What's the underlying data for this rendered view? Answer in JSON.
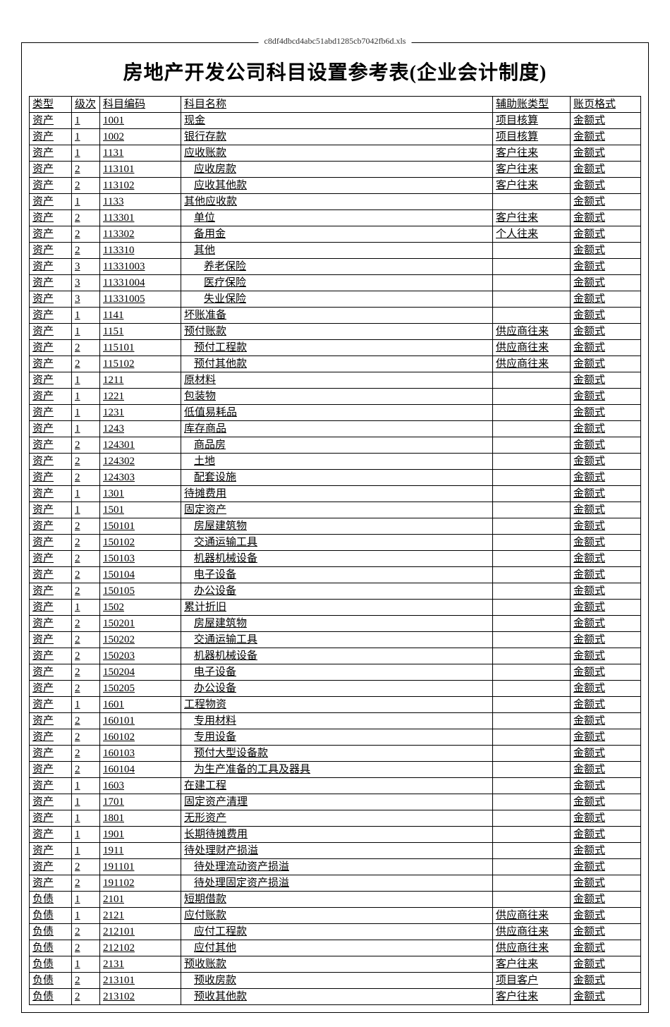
{
  "hidden_header": "c8df4dbcd4abc51abd1285cb7042fb6d.xls",
  "title": "房地产开发公司科目设置参考表(企业会计制度)",
  "columns": [
    "类型",
    "级次",
    "科目编码",
    "科目名称",
    "辅助账类型",
    "账页格式"
  ],
  "rows": [
    {
      "type": "资产",
      "level": "1",
      "code": "1001",
      "name": "现金",
      "aux": "项目核算",
      "page": "金额式"
    },
    {
      "type": "资产",
      "level": "1",
      "code": "1002",
      "name": "银行存款",
      "aux": "项目核算",
      "page": "金额式"
    },
    {
      "type": "资产",
      "level": "1",
      "code": "1131",
      "name": "应收账款",
      "aux": "客户往来",
      "page": "金额式"
    },
    {
      "type": "资产",
      "level": "2",
      "code": "113101",
      "name": "应收房款",
      "aux": "客户往来",
      "page": "金额式"
    },
    {
      "type": "资产",
      "level": "2",
      "code": "113102",
      "name": "应收其他款",
      "aux": "客户往来",
      "page": "金额式"
    },
    {
      "type": "资产",
      "level": "1",
      "code": "1133",
      "name": "其他应收款",
      "aux": "",
      "page": "金额式"
    },
    {
      "type": "资产",
      "level": "2",
      "code": "113301",
      "name": "单位",
      "aux": "客户往来",
      "page": "金额式"
    },
    {
      "type": "资产",
      "level": "2",
      "code": "113302",
      "name": "备用金",
      "aux": "个人往来",
      "page": "金额式"
    },
    {
      "type": "资产",
      "level": "2",
      "code": "113310",
      "name": "其他",
      "aux": "",
      "page": "金额式"
    },
    {
      "type": "资产",
      "level": "3",
      "code": "11331003",
      "name": "养老保险",
      "aux": "",
      "page": "金额式"
    },
    {
      "type": "资产",
      "level": "3",
      "code": "11331004",
      "name": "医疗保险",
      "aux": "",
      "page": "金额式"
    },
    {
      "type": "资产",
      "level": "3",
      "code": "11331005",
      "name": "失业保险",
      "aux": "",
      "page": "金额式"
    },
    {
      "type": "资产",
      "level": "1",
      "code": "1141",
      "name": "坏账准备",
      "aux": "",
      "page": "金额式"
    },
    {
      "type": "资产",
      "level": "1",
      "code": "1151",
      "name": "预付账款",
      "aux": "供应商往来",
      "page": "金额式"
    },
    {
      "type": "资产",
      "level": "2",
      "code": "115101",
      "name": "预付工程款",
      "aux": "供应商往来",
      "page": "金额式"
    },
    {
      "type": "资产",
      "level": "2",
      "code": "115102",
      "name": "预付其他款",
      "aux": "供应商往来",
      "page": "金额式"
    },
    {
      "type": "资产",
      "level": "1",
      "code": "1211",
      "name": "原材料",
      "aux": "",
      "page": "金额式"
    },
    {
      "type": "资产",
      "level": "1",
      "code": "1221",
      "name": "包装物",
      "aux": "",
      "page": "金额式"
    },
    {
      "type": "资产",
      "level": "1",
      "code": "1231",
      "name": "低值易耗品",
      "aux": "",
      "page": "金额式"
    },
    {
      "type": "资产",
      "level": "1",
      "code": "1243",
      "name": "库存商品",
      "aux": "",
      "page": "金额式"
    },
    {
      "type": "资产",
      "level": "2",
      "code": "124301",
      "name": "商品房",
      "aux": "",
      "page": "金额式"
    },
    {
      "type": "资产",
      "level": "2",
      "code": "124302",
      "name": "土地",
      "aux": "",
      "page": "金额式"
    },
    {
      "type": "资产",
      "level": "2",
      "code": "124303",
      "name": "配套设施",
      "aux": "",
      "page": "金额式"
    },
    {
      "type": "资产",
      "level": "1",
      "code": "1301",
      "name": "待摊费用",
      "aux": "",
      "page": "金额式"
    },
    {
      "type": "资产",
      "level": "1",
      "code": "1501",
      "name": "固定资产",
      "aux": "",
      "page": "金额式"
    },
    {
      "type": "资产",
      "level": "2",
      "code": "150101",
      "name": "房屋建筑物",
      "aux": "",
      "page": "金额式"
    },
    {
      "type": "资产",
      "level": "2",
      "code": "150102",
      "name": "交通运输工具",
      "aux": "",
      "page": "金额式"
    },
    {
      "type": "资产",
      "level": "2",
      "code": "150103",
      "name": "机器机械设备",
      "aux": "",
      "page": "金额式"
    },
    {
      "type": "资产",
      "level": "2",
      "code": "150104",
      "name": "电子设备",
      "aux": "",
      "page": "金额式"
    },
    {
      "type": "资产",
      "level": "2",
      "code": "150105",
      "name": "办公设备",
      "aux": "",
      "page": "金额式"
    },
    {
      "type": "资产",
      "level": "1",
      "code": "1502",
      "name": "累计折旧",
      "aux": "",
      "page": "金额式"
    },
    {
      "type": "资产",
      "level": "2",
      "code": "150201",
      "name": "房屋建筑物",
      "aux": "",
      "page": "金额式"
    },
    {
      "type": "资产",
      "level": "2",
      "code": "150202",
      "name": "交通运输工具",
      "aux": "",
      "page": "金额式"
    },
    {
      "type": "资产",
      "level": "2",
      "code": "150203",
      "name": "机器机械设备",
      "aux": "",
      "page": "金额式"
    },
    {
      "type": "资产",
      "level": "2",
      "code": "150204",
      "name": "电子设备",
      "aux": "",
      "page": "金额式"
    },
    {
      "type": "资产",
      "level": "2",
      "code": "150205",
      "name": "办公设备",
      "aux": "",
      "page": "金额式"
    },
    {
      "type": "资产",
      "level": "1",
      "code": "1601",
      "name": "工程物资",
      "aux": "",
      "page": "金额式"
    },
    {
      "type": "资产",
      "level": "2",
      "code": "160101",
      "name": "专用材料",
      "aux": "",
      "page": "金额式"
    },
    {
      "type": "资产",
      "level": "2",
      "code": "160102",
      "name": "专用设备",
      "aux": "",
      "page": "金额式"
    },
    {
      "type": "资产",
      "level": "2",
      "code": "160103",
      "name": "预付大型设备款",
      "aux": "",
      "page": "金额式"
    },
    {
      "type": "资产",
      "level": "2",
      "code": "160104",
      "name": "为生产准备的工具及器具",
      "aux": "",
      "page": "金额式"
    },
    {
      "type": "资产",
      "level": "1",
      "code": "1603",
      "name": "在建工程",
      "aux": "",
      "page": "金额式"
    },
    {
      "type": "资产",
      "level": "1",
      "code": "1701",
      "name": "固定资产清理",
      "aux": "",
      "page": "金额式"
    },
    {
      "type": "资产",
      "level": "1",
      "code": "1801",
      "name": "无形资产",
      "aux": "",
      "page": "金额式"
    },
    {
      "type": "资产",
      "level": "1",
      "code": "1901",
      "name": "长期待摊费用",
      "aux": "",
      "page": "金额式"
    },
    {
      "type": "资产",
      "level": "1",
      "code": "1911",
      "name": "待处理财产损溢",
      "aux": "",
      "page": "金额式"
    },
    {
      "type": "资产",
      "level": "2",
      "code": "191101",
      "name": "待处理流动资产损溢",
      "aux": "",
      "page": "金额式"
    },
    {
      "type": "资产",
      "level": "2",
      "code": "191102",
      "name": "待处理固定资产损溢",
      "aux": "",
      "page": "金额式"
    },
    {
      "type": "负债",
      "level": "1",
      "code": "2101",
      "name": "短期借款",
      "aux": "",
      "page": "金额式"
    },
    {
      "type": "负债",
      "level": "1",
      "code": "2121",
      "name": "应付账款",
      "aux": "供应商往来",
      "page": "金额式"
    },
    {
      "type": "负债",
      "level": "2",
      "code": "212101",
      "name": "应付工程款",
      "aux": "供应商往来",
      "page": "金额式"
    },
    {
      "type": "负债",
      "level": "2",
      "code": "212102",
      "name": "应付其他",
      "aux": "供应商往来",
      "page": "金额式"
    },
    {
      "type": "负债",
      "level": "1",
      "code": "2131",
      "name": "预收账款",
      "aux": "客户往来",
      "page": "金额式"
    },
    {
      "type": "负债",
      "level": "2",
      "code": "213101",
      "name": "预收房款",
      "aux": "项目客户",
      "page": "金额式"
    },
    {
      "type": "负债",
      "level": "2",
      "code": "213102",
      "name": "预收其他款",
      "aux": "客户往来",
      "page": "金额式"
    }
  ]
}
